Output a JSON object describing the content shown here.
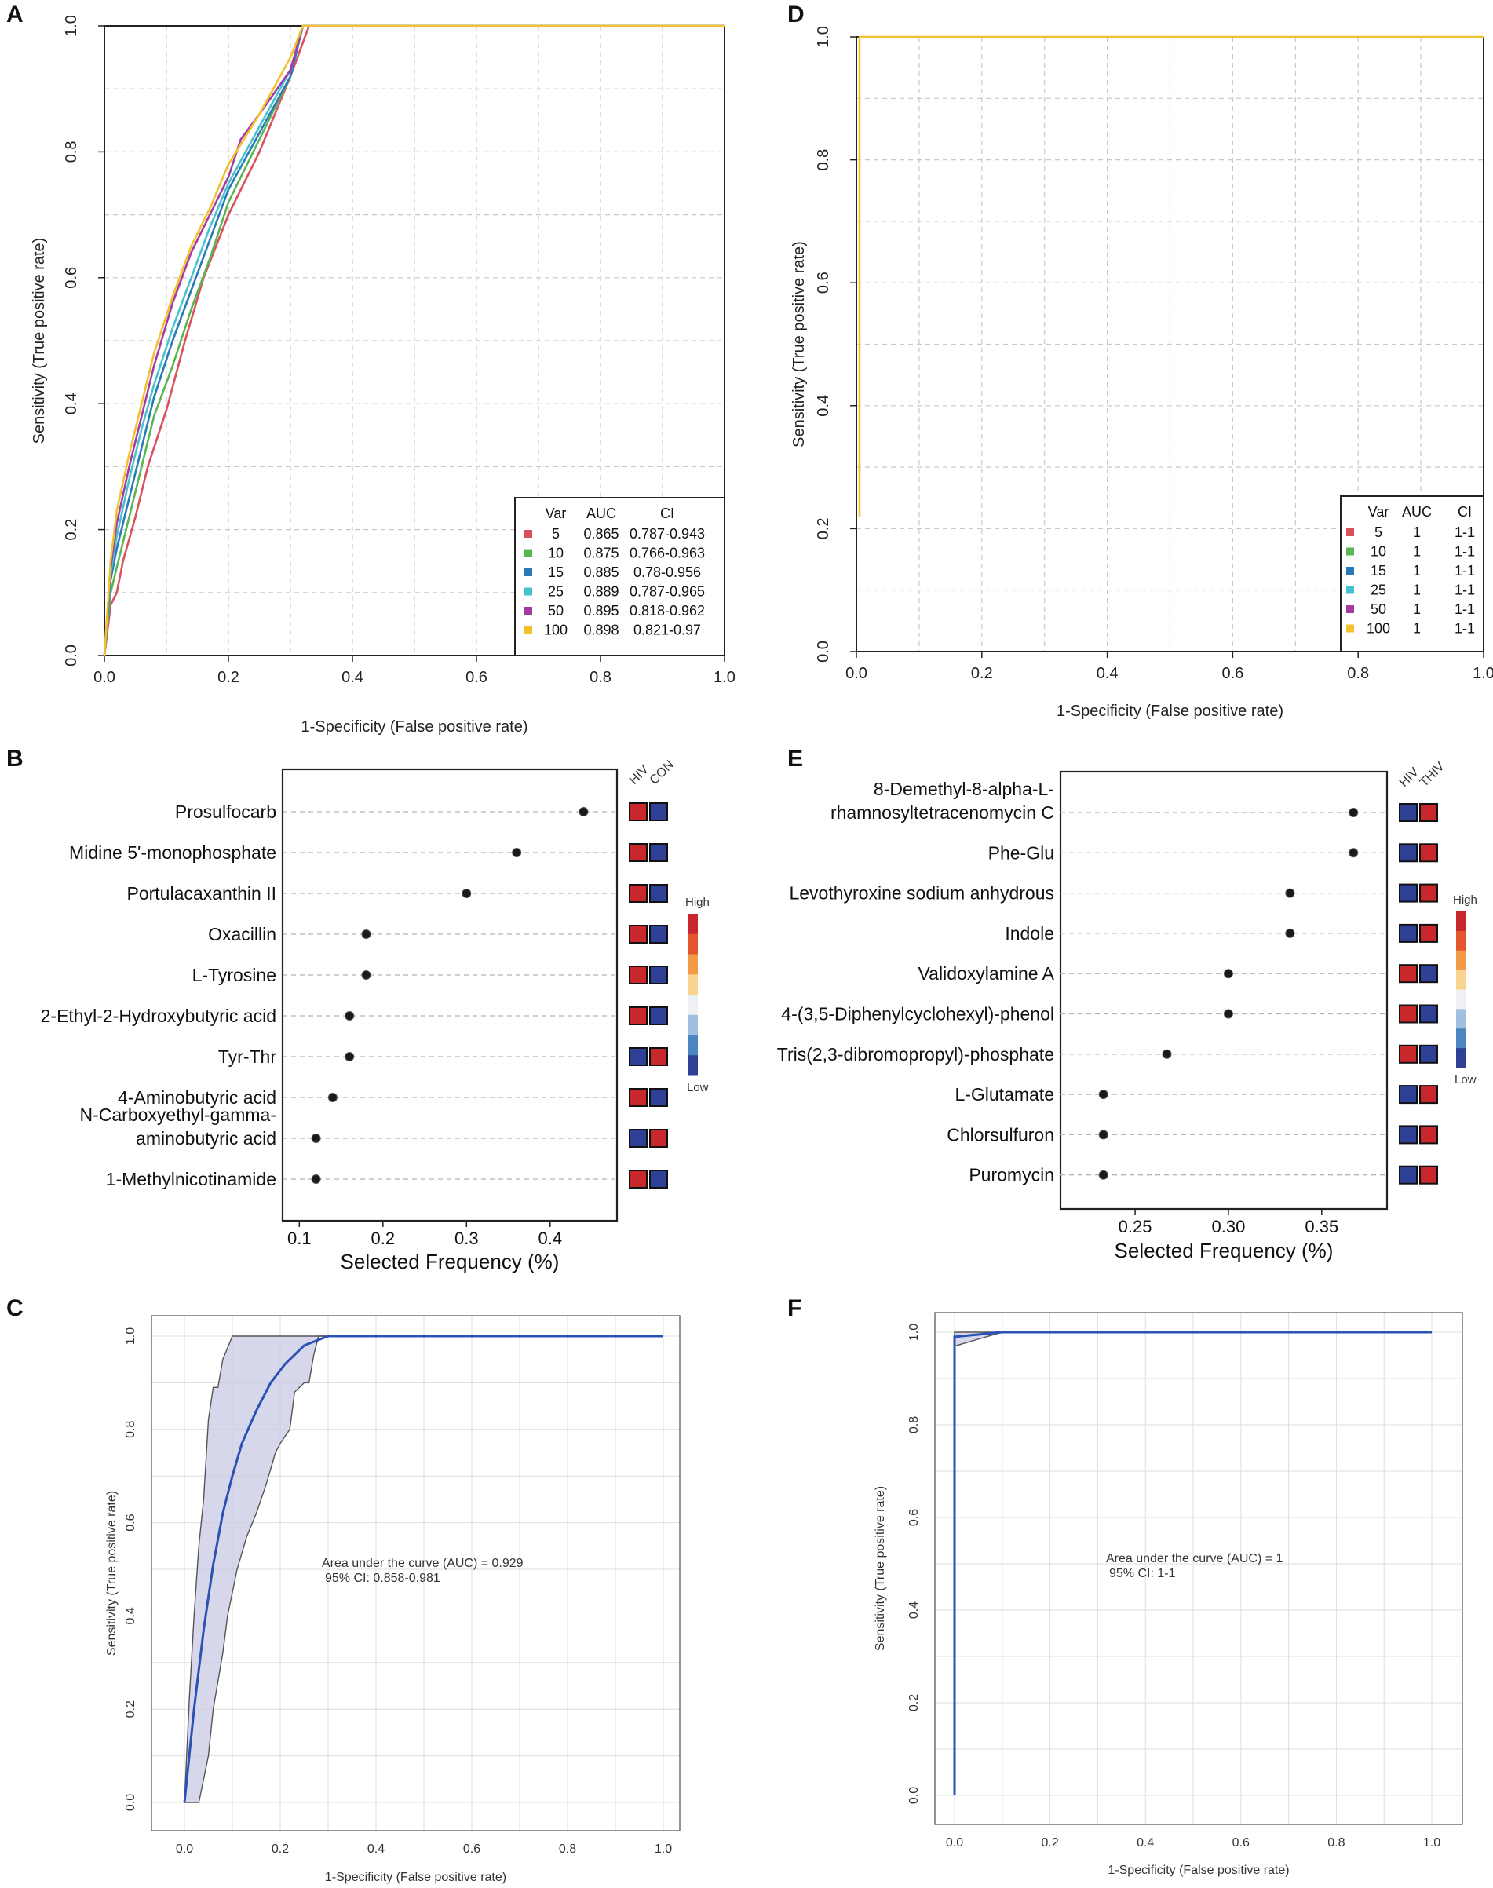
{
  "colors": {
    "series": [
      "#d9505e",
      "#5bb550",
      "#2a7ab8",
      "#47c3cf",
      "#a33da5",
      "#f2c12e"
    ],
    "dot": "#1a1a1a",
    "high": "#c8282b",
    "low": "#2e3f96",
    "ci_band": "#c9c9e6",
    "ci_line": "#2b51b5"
  },
  "chart_data": [
    {
      "id": "A",
      "type": "line",
      "panel_letter": "A",
      "xlabel": "1-Specificity (False positive rate)",
      "ylabel": "Sensitivity (True positive rate)",
      "xlim": [
        0,
        1
      ],
      "ylim": [
        0,
        1
      ],
      "xticks": [
        "0.0",
        "0.2",
        "0.4",
        "0.6",
        "0.8",
        "1.0"
      ],
      "yticks": [
        "0.0",
        "0.2",
        "0.4",
        "0.6",
        "0.8",
        "1.0"
      ],
      "grid": true,
      "legend": {
        "position": "bottom-right",
        "header": [
          "Var",
          "AUC",
          "CI"
        ],
        "rows": [
          {
            "var": "5",
            "auc": "0.865",
            "ci": "0.787-0.943"
          },
          {
            "var": "10",
            "auc": "0.875",
            "ci": "0.766-0.963"
          },
          {
            "var": "15",
            "auc": "0.885",
            "ci": "0.78-0.956"
          },
          {
            "var": "25",
            "auc": "0.889",
            "ci": "0.787-0.965"
          },
          {
            "var": "50",
            "auc": "0.895",
            "ci": "0.818-0.962"
          },
          {
            "var": "100",
            "auc": "0.898",
            "ci": "0.821-0.97"
          }
        ]
      },
      "series": [
        {
          "name": "5",
          "x": [
            0,
            0.01,
            0.02,
            0.03,
            0.05,
            0.07,
            0.1,
            0.13,
            0.16,
            0.2,
            0.25,
            0.3,
            0.33,
            0.4,
            1
          ],
          "y": [
            0,
            0.08,
            0.1,
            0.15,
            0.22,
            0.3,
            0.39,
            0.5,
            0.6,
            0.7,
            0.8,
            0.92,
            1,
            1,
            1
          ]
        },
        {
          "name": "10",
          "x": [
            0,
            0.01,
            0.02,
            0.04,
            0.06,
            0.08,
            0.11,
            0.14,
            0.17,
            0.2,
            0.25,
            0.3,
            0.32,
            0.4,
            1
          ],
          "y": [
            0,
            0.1,
            0.14,
            0.22,
            0.3,
            0.38,
            0.46,
            0.55,
            0.63,
            0.72,
            0.82,
            0.92,
            1,
            1,
            1
          ]
        },
        {
          "name": "15",
          "x": [
            0,
            0.01,
            0.02,
            0.04,
            0.06,
            0.08,
            0.11,
            0.14,
            0.17,
            0.2,
            0.25,
            0.3,
            0.32,
            0.4,
            1
          ],
          "y": [
            0,
            0.12,
            0.17,
            0.25,
            0.33,
            0.41,
            0.5,
            0.58,
            0.66,
            0.74,
            0.83,
            0.92,
            1,
            1,
            1
          ]
        },
        {
          "name": "25",
          "x": [
            0,
            0.01,
            0.02,
            0.04,
            0.06,
            0.08,
            0.11,
            0.14,
            0.17,
            0.2,
            0.25,
            0.3,
            0.32,
            0.4,
            1
          ],
          "y": [
            0,
            0.13,
            0.19,
            0.28,
            0.36,
            0.43,
            0.52,
            0.6,
            0.68,
            0.75,
            0.84,
            0.93,
            1,
            1,
            1
          ]
        },
        {
          "name": "50",
          "x": [
            0,
            0.01,
            0.02,
            0.04,
            0.06,
            0.08,
            0.11,
            0.14,
            0.17,
            0.2,
            0.22,
            0.25,
            0.3,
            0.32,
            0.4,
            1
          ],
          "y": [
            0,
            0.14,
            0.21,
            0.3,
            0.38,
            0.46,
            0.56,
            0.64,
            0.7,
            0.76,
            0.82,
            0.86,
            0.93,
            1,
            1,
            1
          ]
        },
        {
          "name": "100",
          "x": [
            0,
            0.01,
            0.02,
            0.04,
            0.06,
            0.08,
            0.11,
            0.14,
            0.17,
            0.2,
            0.25,
            0.3,
            0.32,
            0.4,
            1
          ],
          "y": [
            0,
            0.15,
            0.23,
            0.32,
            0.4,
            0.48,
            0.57,
            0.65,
            0.71,
            0.78,
            0.86,
            0.95,
            1,
            1,
            1
          ]
        }
      ]
    },
    {
      "id": "D",
      "type": "line",
      "panel_letter": "D",
      "xlabel": "1-Specificity (False positive rate)",
      "ylabel": "Sensitivity (True positive rate)",
      "xlim": [
        0,
        1
      ],
      "ylim": [
        0,
        1
      ],
      "xticks": [
        "0.0",
        "0.2",
        "0.4",
        "0.6",
        "0.8",
        "1.0"
      ],
      "yticks": [
        "0.0",
        "0.2",
        "0.4",
        "0.6",
        "0.8",
        "1.0"
      ],
      "grid": true,
      "legend": {
        "position": "bottom-right",
        "header": [
          "Var",
          "AUC",
          "CI"
        ],
        "rows": [
          {
            "var": "5",
            "auc": "1",
            "ci": "1-1"
          },
          {
            "var": "10",
            "auc": "1",
            "ci": "1-1"
          },
          {
            "var": "15",
            "auc": "1",
            "ci": "1-1"
          },
          {
            "var": "25",
            "auc": "1",
            "ci": "1-1"
          },
          {
            "var": "50",
            "auc": "1",
            "ci": "1-1"
          },
          {
            "var": "100",
            "auc": "1",
            "ci": "1-1"
          }
        ]
      },
      "series": [
        {
          "name": "100",
          "x": [
            0.005,
            0.005,
            0.005,
            1
          ],
          "y": [
            0.22,
            0.22,
            1,
            1
          ]
        }
      ]
    },
    {
      "id": "B",
      "type": "dot",
      "panel_letter": "B",
      "xlabel": "Selected Frequency (%)",
      "xlim": [
        0.08,
        0.48
      ],
      "xticks": [
        0.1,
        0.2,
        0.3,
        0.4
      ],
      "xtick_labels": [
        "0.1",
        "0.2",
        "0.3",
        "0.4"
      ],
      "groups": [
        "HIV",
        "CON"
      ],
      "colorbar": {
        "high": "High",
        "low": "Low"
      },
      "features": [
        {
          "label": [
            "Prosulfocarb"
          ],
          "value": 0.44,
          "boxes": [
            "high",
            "low"
          ]
        },
        {
          "label": [
            "Midine 5'-monophosphate"
          ],
          "value": 0.36,
          "boxes": [
            "high",
            "low"
          ]
        },
        {
          "label": [
            "Portulacaxanthin II"
          ],
          "value": 0.3,
          "boxes": [
            "high",
            "low"
          ]
        },
        {
          "label": [
            "Oxacillin"
          ],
          "value": 0.18,
          "boxes": [
            "high",
            "low"
          ]
        },
        {
          "label": [
            "L-Tyrosine"
          ],
          "value": 0.18,
          "boxes": [
            "high",
            "low"
          ]
        },
        {
          "label": [
            "2-Ethyl-2-Hydroxybutyric acid"
          ],
          "value": 0.16,
          "boxes": [
            "high",
            "low"
          ]
        },
        {
          "label": [
            "Tyr-Thr"
          ],
          "value": 0.16,
          "boxes": [
            "low",
            "high"
          ]
        },
        {
          "label": [
            "4-Aminobutyric acid"
          ],
          "value": 0.14,
          "boxes": [
            "high",
            "low"
          ]
        },
        {
          "label": [
            "N-Carboxyethyl-gamma-",
            "aminobutyric acid"
          ],
          "value": 0.12,
          "boxes": [
            "low",
            "high"
          ]
        },
        {
          "label": [
            "1-Methylnicotinamide"
          ],
          "value": 0.12,
          "boxes": [
            "high",
            "low"
          ]
        }
      ]
    },
    {
      "id": "E",
      "type": "dot",
      "panel_letter": "E",
      "xlabel": "Selected Frequency (%)",
      "xlim": [
        0.21,
        0.385
      ],
      "xticks": [
        0.25,
        0.3,
        0.35
      ],
      "xtick_labels": [
        "0.25",
        "0.30",
        "0.35"
      ],
      "groups": [
        "HIV",
        "THIV"
      ],
      "colorbar": {
        "high": "High",
        "low": "Low"
      },
      "features": [
        {
          "label": [
            "8-Demethyl-8-alpha-L-",
            "rhamnosyltetracenomycin C"
          ],
          "value": 0.367,
          "boxes": [
            "low",
            "high"
          ]
        },
        {
          "label": [
            "Phe-Glu"
          ],
          "value": 0.367,
          "boxes": [
            "low",
            "high"
          ]
        },
        {
          "label": [
            "Levothyroxine sodium anhydrous"
          ],
          "value": 0.333,
          "boxes": [
            "low",
            "high"
          ]
        },
        {
          "label": [
            "Indole"
          ],
          "value": 0.333,
          "boxes": [
            "low",
            "high"
          ]
        },
        {
          "label": [
            "Validoxylamine A"
          ],
          "value": 0.3,
          "boxes": [
            "high",
            "low"
          ]
        },
        {
          "label": [
            "4-(3,5-Diphenylcyclohexyl)-phenol"
          ],
          "value": 0.3,
          "boxes": [
            "high",
            "low"
          ]
        },
        {
          "label": [
            "Tris(2,3-dibromopropyl)-phosphate"
          ],
          "value": 0.267,
          "boxes": [
            "high",
            "low"
          ]
        },
        {
          "label": [
            "L-Glutamate"
          ],
          "value": 0.233,
          "boxes": [
            "low",
            "high"
          ]
        },
        {
          "label": [
            "Chlorsulfuron"
          ],
          "value": 0.233,
          "boxes": [
            "low",
            "high"
          ]
        },
        {
          "label": [
            "Puromycin"
          ],
          "value": 0.233,
          "boxes": [
            "low",
            "high"
          ]
        }
      ]
    },
    {
      "id": "C",
      "type": "line",
      "panel_letter": "C",
      "xlabel": "1-Specificity (False positive rate)",
      "ylabel": "Sensitivity (True positive rate)",
      "xlim": [
        0,
        1
      ],
      "ylim": [
        0,
        1
      ],
      "xticks": [
        "0.0",
        "0.2",
        "0.4",
        "0.6",
        "0.8",
        "1.0"
      ],
      "yticks": [
        "0.0",
        "0.2",
        "0.4",
        "0.6",
        "0.8",
        "1.0"
      ],
      "grid": true,
      "annotation": [
        "Area under the curve (AUC) = 0.929",
        "95% CI: 0.858-0.981"
      ],
      "curve": {
        "x": [
          0,
          0.02,
          0.04,
          0.06,
          0.08,
          0.1,
          0.12,
          0.15,
          0.18,
          0.21,
          0.25,
          0.3,
          1
        ],
        "y": [
          0,
          0.2,
          0.37,
          0.51,
          0.62,
          0.7,
          0.77,
          0.84,
          0.9,
          0.94,
          0.98,
          1,
          1
        ]
      },
      "ci_upper": {
        "x": [
          0,
          0.01,
          0.02,
          0.03,
          0.04,
          0.05,
          0.06,
          0.07,
          0.08,
          0.1,
          1
        ],
        "y": [
          0,
          0.22,
          0.4,
          0.55,
          0.65,
          0.82,
          0.89,
          0.89,
          0.95,
          1,
          1
        ]
      },
      "ci_lower": {
        "x": [
          0,
          0.03,
          0.05,
          0.06,
          0.08,
          0.09,
          0.11,
          0.13,
          0.15,
          0.17,
          0.19,
          0.2,
          0.22,
          0.23,
          0.25,
          0.26,
          0.27,
          0.28,
          1
        ],
        "y": [
          0,
          0,
          0.1,
          0.2,
          0.32,
          0.4,
          0.5,
          0.57,
          0.62,
          0.68,
          0.75,
          0.77,
          0.8,
          0.88,
          0.9,
          0.9,
          0.96,
          1,
          1
        ]
      }
    },
    {
      "id": "F",
      "type": "line",
      "panel_letter": "F",
      "xlabel": "1-Specificity (False positive rate)",
      "ylabel": "Sensitivity (True positive rate)",
      "xlim": [
        0,
        1
      ],
      "ylim": [
        0,
        1
      ],
      "xticks": [
        "0.0",
        "0.2",
        "0.4",
        "0.6",
        "0.8",
        "1.0"
      ],
      "yticks": [
        "0.0",
        "0.2",
        "0.4",
        "0.6",
        "0.8",
        "1.0"
      ],
      "grid": true,
      "annotation": [
        "Area under the curve (AUC) = 1",
        "95% CI: 1-1"
      ],
      "curve": {
        "x": [
          0,
          0,
          0.1,
          1
        ],
        "y": [
          0,
          0.99,
          1,
          1
        ]
      },
      "ci_upper": {
        "x": [
          0,
          0,
          1
        ],
        "y": [
          0,
          1,
          1
        ]
      },
      "ci_lower": {
        "x": [
          0,
          0,
          0.1,
          1
        ],
        "y": [
          0,
          0.97,
          1,
          1
        ]
      }
    }
  ]
}
